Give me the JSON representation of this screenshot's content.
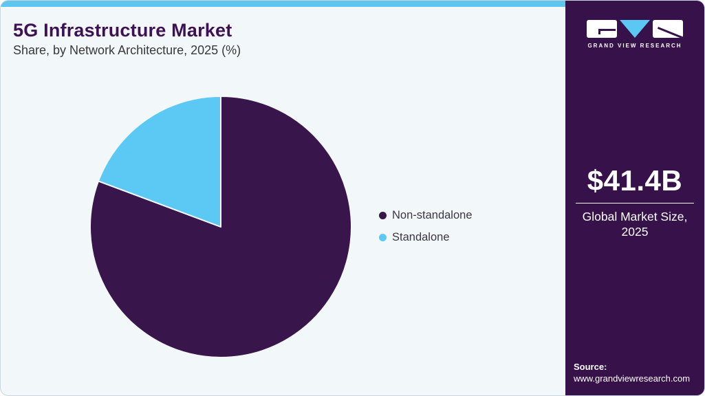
{
  "header": {
    "title": "5G Infrastructure Market",
    "subtitle": "Share, by Network Architecture, 2025 (%)"
  },
  "chart_data": {
    "type": "pie",
    "title": "5G Infrastructure Market Share, by Network Architecture, 2025 (%)",
    "categories": [
      "Non-standalone",
      "Standalone"
    ],
    "values": [
      80.7,
      19.3
    ],
    "unit": "%",
    "colors": [
      "#38154b",
      "#5bc9f4"
    ],
    "start_angle_deg": 0,
    "direction": "clockwise",
    "legend_position": "right",
    "slice_stroke": "#f2f7fa"
  },
  "sidebar": {
    "logo_text": "GRAND VIEW RESEARCH",
    "market_size_value": "$41.4B",
    "market_size_label_line1": "Global Market Size,",
    "market_size_label_line2": "2025",
    "source_label": "Source:",
    "source_url": "www.grandviewresearch.com"
  },
  "theme": {
    "card_background": "#f2f7fa",
    "topbar_accent": "#5ec5ee",
    "sidebar_background": "#36114a",
    "title_color": "#3e1155",
    "subtitle_color": "#383838",
    "legend_text_color": "#3b3742",
    "logo_triangle_blue": "#5bc8f3"
  }
}
